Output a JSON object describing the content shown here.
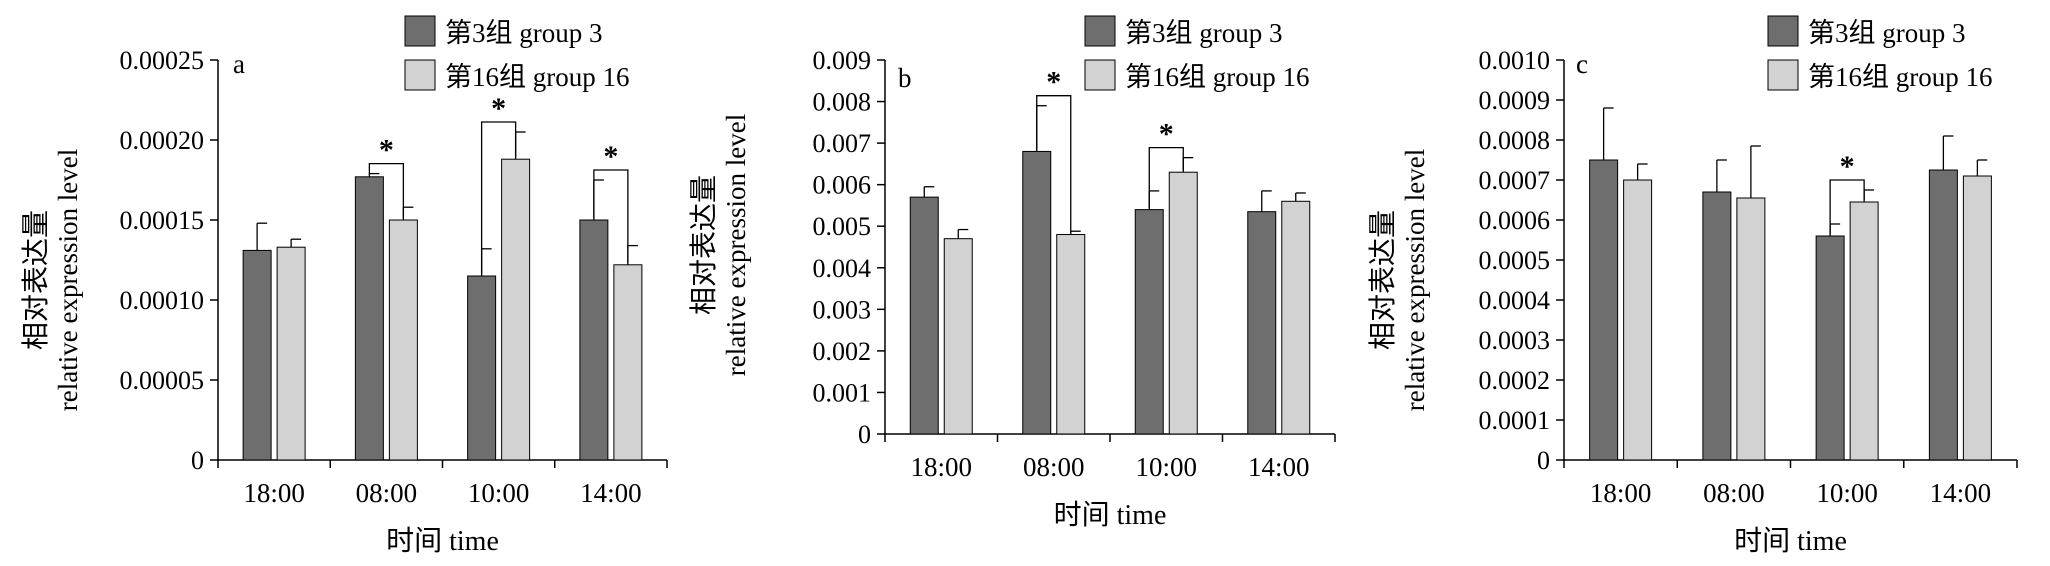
{
  "legend": {
    "group3": "第3组 group 3",
    "group16": "第16组 group 16"
  },
  "colors": {
    "group3": "#6e6e6e",
    "group16": "#d2d2d2",
    "axis": "#000000"
  },
  "chart_data": [
    {
      "type": "bar",
      "panel_label": "a",
      "categories": [
        "18:00",
        "08:00",
        "10:00",
        "14:00"
      ],
      "xlabel": "时间 time",
      "ylabel_cn": "相对表达量",
      "ylabel_en": "relative expression level",
      "ylim": [
        0,
        0.00025
      ],
      "yticks": [
        "0",
        "0.00005",
        "0.00010",
        "0.00015",
        "0.00020",
        "0.00025"
      ],
      "ytick_values": [
        0,
        5e-05,
        0.0001,
        0.00015,
        0.0002,
        0.00025
      ],
      "legend_position": "top-right",
      "series": [
        {
          "name": "第3组 group 3",
          "values": [
            0.000131,
            0.000177,
            0.000115,
            0.00015
          ],
          "errors": [
            1.7e-05,
            2e-06,
            1.7e-05,
            2.5e-05
          ]
        },
        {
          "name": "第16组 group 16",
          "values": [
            0.000133,
            0.00015,
            0.000188,
            0.000122
          ],
          "errors": [
            5e-06,
            8e-06,
            1.7e-05,
            1.2e-05
          ]
        }
      ],
      "significance": [
        {
          "category_index": 1,
          "label": "*"
        },
        {
          "category_index": 2,
          "label": "*"
        },
        {
          "category_index": 3,
          "label": "*"
        }
      ]
    },
    {
      "type": "bar",
      "panel_label": "b",
      "categories": [
        "18:00",
        "08:00",
        "10:00",
        "14:00"
      ],
      "xlabel": "时间 time",
      "ylabel_cn": "相对表达量",
      "ylabel_en": "relative expression level",
      "ylim": [
        0,
        0.009
      ],
      "yticks": [
        "0",
        "0.001",
        "0.002",
        "0.003",
        "0.004",
        "0.005",
        "0.006",
        "0.007",
        "0.008",
        "0.009"
      ],
      "ytick_values": [
        0,
        0.001,
        0.002,
        0.003,
        0.004,
        0.005,
        0.006,
        0.007,
        0.008,
        0.009
      ],
      "legend_position": "top-right",
      "series": [
        {
          "name": "第3组 group 3",
          "values": [
            0.0057,
            0.0068,
            0.0054,
            0.00535
          ],
          "errors": [
            0.00025,
            0.0011,
            0.00045,
            0.0005
          ]
        },
        {
          "name": "第16组 group 16",
          "values": [
            0.0047,
            0.0048,
            0.0063,
            0.0056
          ],
          "errors": [
            0.00022,
            8e-05,
            0.00035,
            0.0002
          ]
        }
      ],
      "significance": [
        {
          "category_index": 1,
          "label": "*"
        },
        {
          "category_index": 2,
          "label": "*"
        }
      ]
    },
    {
      "type": "bar",
      "panel_label": "c",
      "categories": [
        "18:00",
        "08:00",
        "10:00",
        "14:00"
      ],
      "xlabel": "时间 time",
      "ylabel_cn": "相对表达量",
      "ylabel_en": "relative expression level",
      "ylim": [
        0,
        0.001
      ],
      "yticks": [
        "0",
        "0.0001",
        "0.0002",
        "0.0003",
        "0.0004",
        "0.0005",
        "0.0006",
        "0.0007",
        "0.0008",
        "0.0009",
        "0.0010"
      ],
      "ytick_values": [
        0,
        0.0001,
        0.0002,
        0.0003,
        0.0004,
        0.0005,
        0.0006,
        0.0007,
        0.0008,
        0.0009,
        0.001
      ],
      "legend_position": "top-right",
      "series": [
        {
          "name": "第3组 group 3",
          "values": [
            0.00075,
            0.00067,
            0.00056,
            0.000725
          ],
          "errors": [
            0.00013,
            8e-05,
            3e-05,
            8.5e-05
          ]
        },
        {
          "name": "第16组 group 16",
          "values": [
            0.0007,
            0.000655,
            0.000645,
            0.00071
          ],
          "errors": [
            4e-05,
            0.00013,
            3e-05,
            4e-05
          ]
        }
      ],
      "significance": [
        {
          "category_index": 2,
          "label": "*"
        }
      ]
    }
  ]
}
